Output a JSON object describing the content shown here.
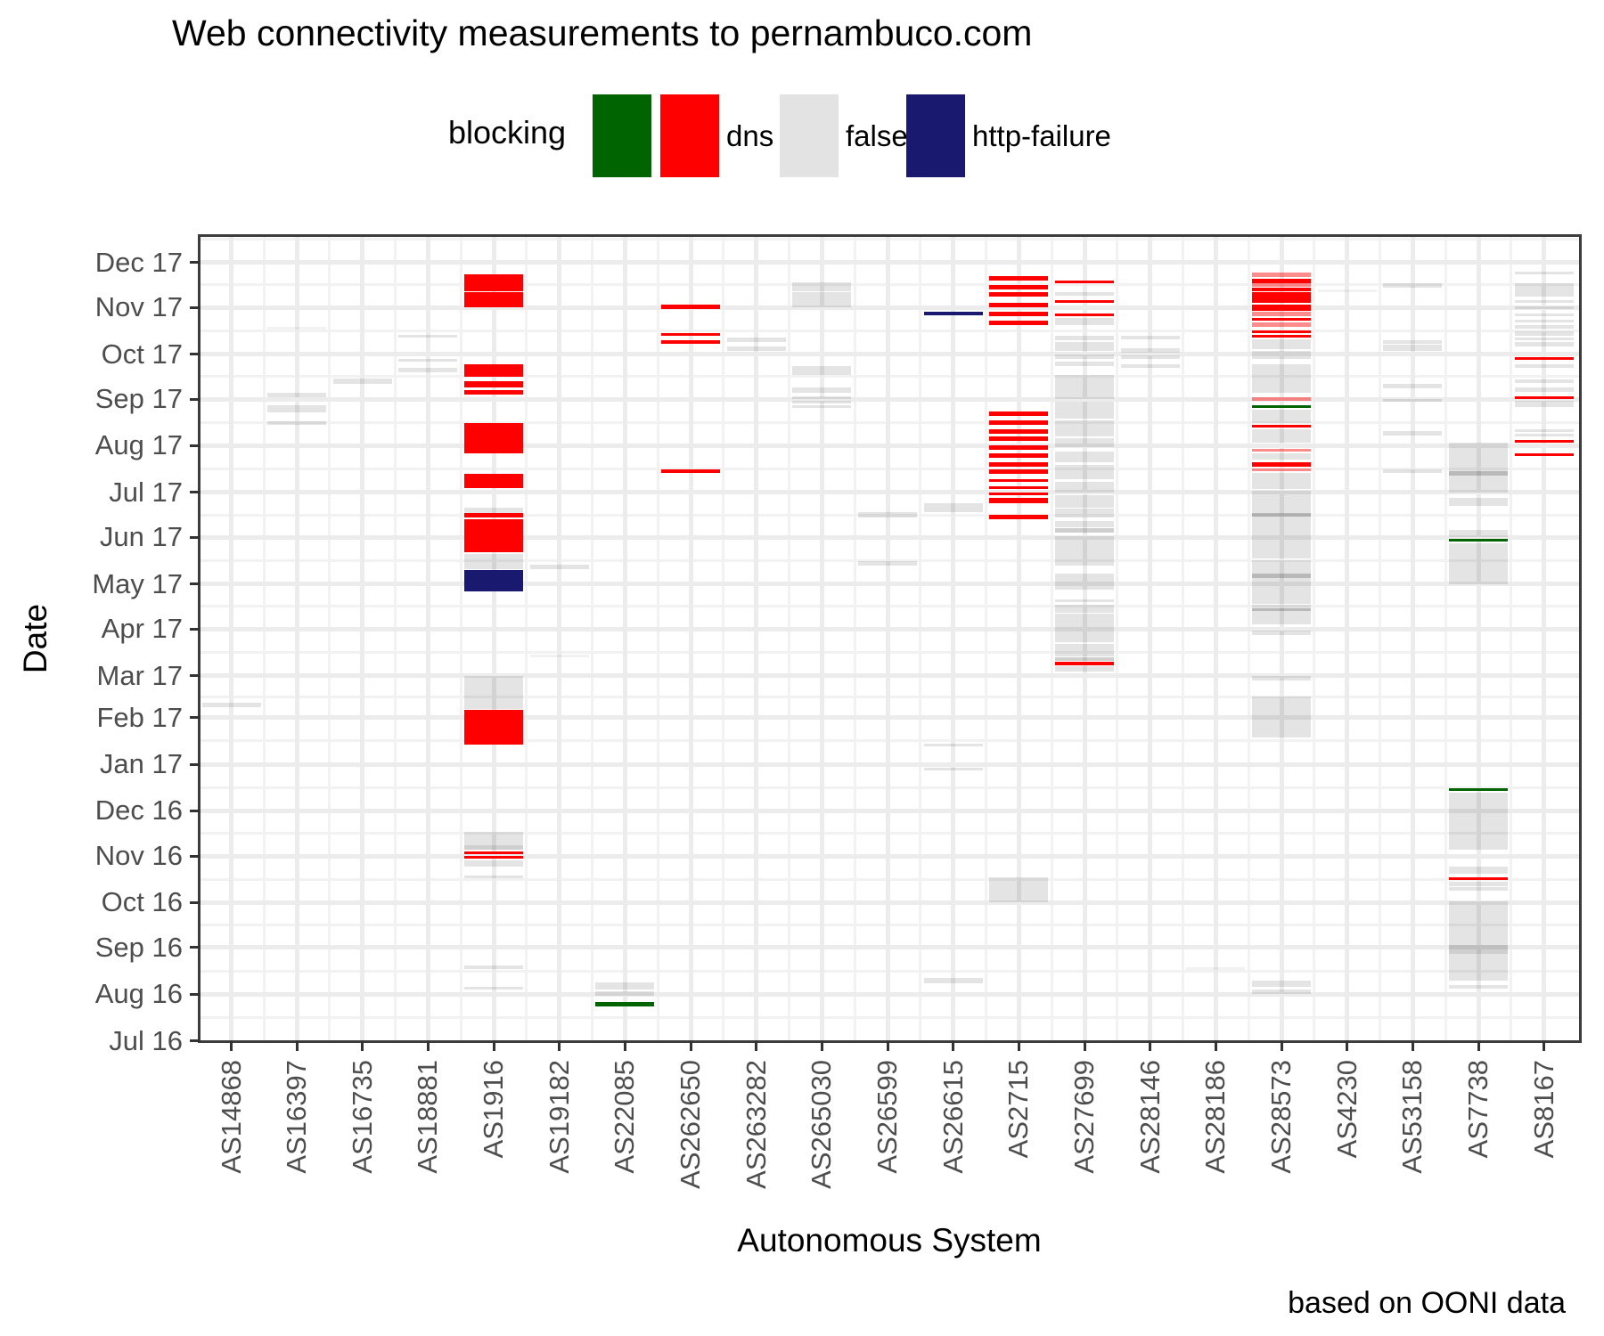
{
  "title": "Web connectivity measurements to pernambuco.com",
  "caption": "based on OONI data",
  "legend": {
    "title": "blocking",
    "entries": [
      {
        "label": "",
        "color": "#006400"
      },
      {
        "label": "dns",
        "color": "#fe0000"
      },
      {
        "label": "false",
        "color": "#e3e3e3"
      },
      {
        "label": "http-failure",
        "color": "#191970"
      }
    ]
  },
  "chart_data": {
    "type": "heatmap",
    "title": "Web connectivity measurements to pernambuco.com",
    "xlabel": "Autonomous System",
    "ylabel": "Date",
    "legend_position": "top",
    "grid": true,
    "date_range": [
      "2016-07-01",
      "2017-12-18"
    ],
    "x_categories": [
      "AS14868",
      "AS16397",
      "AS16735",
      "AS18881",
      "AS1916",
      "AS19182",
      "AS22085",
      "AS262650",
      "AS263282",
      "AS265030",
      "AS26599",
      "AS26615",
      "AS2715",
      "AS27699",
      "AS28146",
      "AS28186",
      "AS28573",
      "AS4230",
      "AS53158",
      "AS7738",
      "AS8167"
    ],
    "y_ticks": [
      {
        "label": "Dec 17",
        "month": "2017-12"
      },
      {
        "label": "Nov 17",
        "month": "2017-11"
      },
      {
        "label": "Oct 17",
        "month": "2017-10"
      },
      {
        "label": "Sep 17",
        "month": "2017-09"
      },
      {
        "label": "Aug 17",
        "month": "2017-08"
      },
      {
        "label": "Jul 17",
        "month": "2017-07"
      },
      {
        "label": "Jun 17",
        "month": "2017-06"
      },
      {
        "label": "May 17",
        "month": "2017-05"
      },
      {
        "label": "Apr 17",
        "month": "2017-04"
      },
      {
        "label": "Mar 17",
        "month": "2017-03"
      },
      {
        "label": "Feb 17",
        "month": "2017-02"
      },
      {
        "label": "Jan 17",
        "month": "2017-01"
      },
      {
        "label": "Dec 16",
        "month": "2016-12"
      },
      {
        "label": "Nov 16",
        "month": "2016-11"
      },
      {
        "label": "Oct 16",
        "month": "2016-10"
      },
      {
        "label": "Sep 16",
        "month": "2016-09"
      },
      {
        "label": "Aug 16",
        "month": "2016-08"
      },
      {
        "label": "Jul 16",
        "month": "2016-07"
      }
    ],
    "status_colors": {
      "dns": "#fe0000",
      "false": "rgba(0,0,0,0.105)",
      "http-failure": "#191970",
      "": "#006400"
    },
    "marks": {
      "AS14868": [
        [
          "2017-02-08",
          "2017-02-11",
          "false"
        ]
      ],
      "AS16397": [
        [
          "2017-10-17",
          "2017-10-19",
          "false",
          "light"
        ],
        [
          "2017-09-02",
          "2017-09-05",
          "false"
        ],
        [
          "2017-08-23",
          "2017-08-28",
          "false"
        ],
        [
          "2017-08-15",
          "2017-08-17",
          "false"
        ]
      ],
      "AS16735": [
        [
          "2017-09-11",
          "2017-09-15",
          "false"
        ]
      ],
      "AS18881": [
        [
          "2017-10-12",
          "2017-10-14",
          "false"
        ],
        [
          "2017-09-26",
          "2017-09-28",
          "false"
        ],
        [
          "2017-09-19",
          "2017-09-22",
          "false"
        ]
      ],
      "AS1916": [
        [
          "2017-11-12",
          "2017-11-23",
          "dns"
        ],
        [
          "2017-11-01",
          "2017-11-11",
          "dns"
        ],
        [
          "2017-09-16",
          "2017-09-24",
          "dns"
        ],
        [
          "2017-09-09",
          "2017-09-13",
          "dns"
        ],
        [
          "2017-09-04",
          "2017-09-07",
          "dns"
        ],
        [
          "2017-07-27",
          "2017-08-16",
          "dns"
        ],
        [
          "2017-07-04",
          "2017-07-13",
          "dns"
        ],
        [
          "2017-06-17",
          "2017-06-21",
          "false"
        ],
        [
          "2017-06-14",
          "2017-06-17",
          "dns"
        ],
        [
          "2017-05-22",
          "2017-06-13",
          "dns"
        ],
        [
          "2017-05-11",
          "2017-05-21",
          "false"
        ],
        [
          "2017-04-26",
          "2017-05-10",
          "http-failure"
        ],
        [
          "2017-02-07",
          "2017-03-01",
          "false"
        ],
        [
          "2017-01-14",
          "2017-02-06",
          "dns"
        ],
        [
          "2016-11-08",
          "2016-11-17",
          "false"
        ],
        [
          "2016-11-05",
          "2016-11-08",
          "false",
          "dark"
        ],
        [
          "2016-11-02",
          "2016-11-04",
          "dns"
        ],
        [
          "2016-10-30",
          "2016-11-01",
          "dns"
        ],
        [
          "2016-10-25",
          "2016-10-29",
          "false"
        ],
        [
          "2016-10-17",
          "2016-10-19",
          "false"
        ],
        [
          "2016-08-18",
          "2016-08-20",
          "false"
        ],
        [
          "2016-08-04",
          "2016-08-06",
          "false"
        ]
      ],
      "AS19182": [
        [
          "2017-05-11",
          "2017-05-14",
          "false"
        ],
        [
          "2017-03-13",
          "2017-03-15",
          "false",
          "light"
        ]
      ],
      "AS22085": [
        [
          "2016-08-04",
          "2016-08-09",
          "false"
        ],
        [
          "2016-07-31",
          "2016-08-03",
          "false"
        ],
        [
          "2016-07-24",
          "2016-07-27",
          ""
        ]
      ],
      "AS262650": [
        [
          "2017-10-31",
          "2017-11-03",
          "dns"
        ],
        [
          "2017-10-13",
          "2017-10-15",
          "dns"
        ],
        [
          "2017-10-08",
          "2017-10-10",
          "dns"
        ],
        [
          "2017-07-14",
          "2017-07-16",
          "dns"
        ]
      ],
      "AS263282": [
        [
          "2017-10-09",
          "2017-10-12",
          "false"
        ],
        [
          "2017-10-03",
          "2017-10-06",
          "false"
        ]
      ],
      "AS265030": [
        [
          "2017-11-12",
          "2017-11-18",
          "false"
        ],
        [
          "2017-11-01",
          "2017-11-11",
          "false"
        ],
        [
          "2017-09-17",
          "2017-09-23",
          "false"
        ],
        [
          "2017-09-05",
          "2017-09-09",
          "false"
        ],
        [
          "2017-09-01",
          "2017-09-03",
          "false"
        ],
        [
          "2017-08-29",
          "2017-08-31",
          "false"
        ],
        [
          "2017-08-26",
          "2017-08-28",
          "false"
        ]
      ],
      "AS26599": [
        [
          "2017-06-14",
          "2017-06-18",
          "false"
        ],
        [
          "2017-05-13",
          "2017-05-16",
          "false"
        ]
      ],
      "AS26615": [
        [
          "2017-10-27",
          "2017-10-29",
          "http-failure"
        ],
        [
          "2017-06-18",
          "2017-06-24",
          "false"
        ],
        [
          "2017-01-13",
          "2017-01-15",
          "false"
        ],
        [
          "2016-12-28",
          "2016-12-30",
          "false"
        ],
        [
          "2016-08-08",
          "2016-08-12",
          "false"
        ]
      ],
      "AS2715": [
        [
          "2017-11-19",
          "2017-11-22",
          "dns"
        ],
        [
          "2017-11-13",
          "2017-11-16",
          "dns"
        ],
        [
          "2017-11-08",
          "2017-11-11",
          "dns"
        ],
        [
          "2017-11-01",
          "2017-11-04",
          "dns"
        ],
        [
          "2017-10-26",
          "2017-10-29",
          "dns"
        ],
        [
          "2017-10-20",
          "2017-10-23",
          "dns"
        ],
        [
          "2017-08-21",
          "2017-08-24",
          "dns"
        ],
        [
          "2017-08-15",
          "2017-08-18",
          "dns"
        ],
        [
          "2017-08-09",
          "2017-08-12",
          "dns"
        ],
        [
          "2017-08-04",
          "2017-08-07",
          "dns"
        ],
        [
          "2017-07-29",
          "2017-08-01",
          "dns"
        ],
        [
          "2017-07-24",
          "2017-07-27",
          "dns"
        ],
        [
          "2017-07-18",
          "2017-07-21",
          "dns"
        ],
        [
          "2017-07-13",
          "2017-07-16",
          "dns"
        ],
        [
          "2017-07-08",
          "2017-07-10",
          "dns"
        ],
        [
          "2017-07-03",
          "2017-07-05",
          "dns"
        ],
        [
          "2017-06-30",
          "2017-07-01",
          "dns"
        ],
        [
          "2017-06-24",
          "2017-06-27",
          "dns"
        ],
        [
          "2017-06-13",
          "2017-06-16",
          "dns"
        ],
        [
          "2016-10-01",
          "2016-10-18",
          "false"
        ]
      ],
      "AS27699": [
        [
          "2017-11-17",
          "2017-11-19",
          "dns"
        ],
        [
          "2017-11-09",
          "2017-11-11",
          "false"
        ],
        [
          "2017-11-04",
          "2017-11-06",
          "dns"
        ],
        [
          "2017-10-27",
          "2017-10-28",
          "dns"
        ],
        [
          "2017-10-20",
          "2017-10-25",
          "false"
        ],
        [
          "2017-10-10",
          "2017-10-13",
          "false"
        ],
        [
          "2017-10-03",
          "2017-10-09",
          "false"
        ],
        [
          "2017-09-28",
          "2017-10-01",
          "false"
        ],
        [
          "2017-09-23",
          "2017-09-26",
          "false"
        ],
        [
          "2017-09-01",
          "2017-09-17",
          "false"
        ],
        [
          "2017-08-19",
          "2017-08-30",
          "false"
        ],
        [
          "2017-08-07",
          "2017-08-18",
          "false"
        ],
        [
          "2017-07-31",
          "2017-08-06",
          "false"
        ],
        [
          "2017-07-21",
          "2017-07-28",
          "false"
        ],
        [
          "2017-07-10",
          "2017-07-19",
          "false"
        ],
        [
          "2017-07-01",
          "2017-07-08",
          "false"
        ],
        [
          "2017-06-21",
          "2017-06-29",
          "false"
        ],
        [
          "2017-06-14",
          "2017-06-20",
          "false"
        ],
        [
          "2017-06-08",
          "2017-06-12",
          "false"
        ],
        [
          "2017-06-04",
          "2017-06-07",
          "false",
          "dark"
        ],
        [
          "2017-05-13",
          "2017-06-02",
          "false"
        ],
        [
          "2017-04-27",
          "2017-05-08",
          "false"
        ],
        [
          "2017-04-19",
          "2017-04-21",
          "false"
        ],
        [
          "2017-04-12",
          "2017-04-17",
          "false"
        ],
        [
          "2017-03-23",
          "2017-04-11",
          "false"
        ],
        [
          "2017-03-14",
          "2017-03-22",
          "false"
        ],
        [
          "2017-03-11",
          "2017-03-13",
          "false",
          "dark"
        ],
        [
          "2017-03-08",
          "2017-03-10",
          "dns"
        ],
        [
          "2017-03-04",
          "2017-03-07",
          "false"
        ]
      ],
      "AS28146": [
        [
          "2017-10-11",
          "2017-10-13",
          "false"
        ],
        [
          "2017-10-02",
          "2017-10-05",
          "false"
        ],
        [
          "2017-09-28",
          "2017-09-30",
          "false"
        ],
        [
          "2017-09-22",
          "2017-09-24",
          "false"
        ]
      ],
      "AS28186": [
        [
          "2016-08-17",
          "2016-08-19",
          "false",
          "light"
        ]
      ],
      "AS28573": [
        [
          "2017-11-21",
          "2017-11-24",
          "dns",
          "light"
        ],
        [
          "2017-11-17",
          "2017-11-20",
          "dns"
        ],
        [
          "2017-11-15",
          "2017-11-17",
          "dns",
          "light"
        ],
        [
          "2017-11-12",
          "2017-11-14",
          "dns"
        ],
        [
          "2017-11-04",
          "2017-11-11",
          "dns"
        ],
        [
          "2017-10-30",
          "2017-11-03",
          "dns"
        ],
        [
          "2017-10-26",
          "2017-10-29",
          "dns",
          "light"
        ],
        [
          "2017-10-23",
          "2017-10-25",
          "dns"
        ],
        [
          "2017-10-19",
          "2017-10-22",
          "dns",
          "light"
        ],
        [
          "2017-10-16",
          "2017-10-17",
          "dns"
        ],
        [
          "2017-10-12",
          "2017-10-14",
          "dns"
        ],
        [
          "2017-10-04",
          "2017-10-11",
          "false"
        ],
        [
          "2017-09-28",
          "2017-10-03",
          "false"
        ],
        [
          "2017-09-05",
          "2017-09-24",
          "false"
        ],
        [
          "2017-08-31",
          "2017-09-02",
          "dns",
          "light"
        ],
        [
          "2017-08-26",
          "2017-08-28",
          ""
        ],
        [
          "2017-08-16",
          "2017-08-25",
          "false"
        ],
        [
          "2017-08-13",
          "2017-08-15",
          "dns"
        ],
        [
          "2017-08-03",
          "2017-08-12",
          "false"
        ],
        [
          "2017-07-28",
          "2017-07-30",
          "dns",
          "light"
        ],
        [
          "2017-07-23",
          "2017-07-27",
          "false"
        ],
        [
          "2017-07-18",
          "2017-07-21",
          "dns"
        ],
        [
          "2017-07-15",
          "2017-07-17",
          "dns",
          "light"
        ],
        [
          "2017-07-03",
          "2017-07-14",
          "false"
        ],
        [
          "2017-05-18",
          "2017-07-02",
          "false"
        ],
        [
          "2017-06-15",
          "2017-06-17",
          "false",
          "dark"
        ],
        [
          "2017-04-18",
          "2017-05-17",
          "false"
        ],
        [
          "2017-05-05",
          "2017-05-08",
          "false",
          "dark"
        ],
        [
          "2017-04-13",
          "2017-04-15",
          "false",
          "dark"
        ],
        [
          "2017-04-04",
          "2017-04-17",
          "false"
        ],
        [
          "2017-03-28",
          "2017-03-31",
          "false"
        ],
        [
          "2017-02-26",
          "2017-03-01",
          "false"
        ],
        [
          "2017-01-19",
          "2017-02-15",
          "false"
        ],
        [
          "2016-08-06",
          "2016-08-10",
          "false"
        ],
        [
          "2016-08-01",
          "2016-08-04",
          "false"
        ]
      ],
      "AS4230": [
        [
          "2017-11-11",
          "2017-11-13",
          "false",
          "light"
        ]
      ],
      "AS53158": [
        [
          "2017-11-14",
          "2017-11-17",
          "false"
        ],
        [
          "2017-10-08",
          "2017-10-10",
          "false"
        ],
        [
          "2017-10-03",
          "2017-10-07",
          "false"
        ],
        [
          "2017-09-08",
          "2017-09-11",
          "false"
        ],
        [
          "2017-08-31",
          "2017-09-01",
          "false"
        ],
        [
          "2017-08-08",
          "2017-08-11",
          "false"
        ],
        [
          "2017-07-14",
          "2017-07-16",
          "false"
        ]
      ],
      "AS7738": [
        [
          "2017-07-01",
          "2017-08-03",
          "false"
        ],
        [
          "2017-07-12",
          "2017-07-15",
          "false",
          "dark"
        ],
        [
          "2017-06-22",
          "2017-06-27",
          "false"
        ],
        [
          "2017-06-01",
          "2017-06-06",
          "false"
        ],
        [
          "2017-05-29",
          "2017-05-31",
          ""
        ],
        [
          "2017-05-01",
          "2017-05-28",
          "false"
        ],
        [
          "2016-12-14",
          "2016-12-16",
          ""
        ],
        [
          "2016-11-05",
          "2016-12-13",
          "false"
        ],
        [
          "2016-10-20",
          "2016-10-25",
          "false"
        ],
        [
          "2016-10-16",
          "2016-10-18",
          "dns"
        ],
        [
          "2016-10-12",
          "2016-10-15",
          "false"
        ],
        [
          "2016-10-09",
          "2016-10-11",
          "false"
        ],
        [
          "2016-09-21",
          "2016-10-02",
          "false"
        ],
        [
          "2016-09-03",
          "2016-09-21",
          "false"
        ],
        [
          "2016-08-28",
          "2016-09-03",
          "false",
          "dark"
        ],
        [
          "2016-08-10",
          "2016-08-28",
          "false"
        ],
        [
          "2016-08-05",
          "2016-08-07",
          "false"
        ]
      ],
      "AS8167": [
        [
          "2017-11-23",
          "2017-11-25",
          "false"
        ],
        [
          "2017-11-08",
          "2017-11-17",
          "false"
        ],
        [
          "2017-11-04",
          "2017-11-06",
          "false"
        ],
        [
          "2017-10-31",
          "2017-11-02",
          "false"
        ],
        [
          "2017-10-26",
          "2017-10-28",
          "false"
        ],
        [
          "2017-10-22",
          "2017-10-24",
          "false"
        ],
        [
          "2017-10-18",
          "2017-10-20",
          "false"
        ],
        [
          "2017-10-13",
          "2017-10-16",
          "false"
        ],
        [
          "2017-10-10",
          "2017-10-12",
          "false"
        ],
        [
          "2017-10-06",
          "2017-10-09",
          "false"
        ],
        [
          "2017-09-27",
          "2017-09-29",
          "dns"
        ],
        [
          "2017-09-22",
          "2017-09-24",
          "false"
        ],
        [
          "2017-09-12",
          "2017-09-14",
          "false"
        ],
        [
          "2017-09-06",
          "2017-09-09",
          "false"
        ],
        [
          "2017-09-01",
          "2017-09-03",
          "dns"
        ],
        [
          "2017-08-27",
          "2017-08-31",
          "false"
        ],
        [
          "2017-08-10",
          "2017-08-12",
          "false"
        ],
        [
          "2017-08-07",
          "2017-08-09",
          "false"
        ],
        [
          "2017-08-03",
          "2017-08-05",
          "dns"
        ],
        [
          "2017-07-25",
          "2017-07-27",
          "dns"
        ]
      ]
    }
  }
}
